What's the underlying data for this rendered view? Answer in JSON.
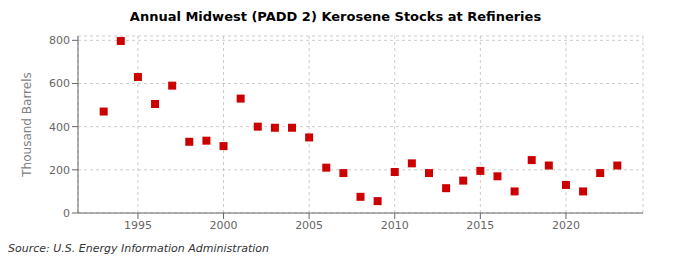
{
  "chart_data": {
    "type": "scatter",
    "title": "Annual Midwest (PADD 2) Kerosene Stocks at Refineries",
    "ylabel": "Thousand Barrels",
    "source": "Source: U.S. Energy Information Administration",
    "x": [
      1993,
      1994,
      1995,
      1996,
      1997,
      1998,
      1999,
      2000,
      2001,
      2002,
      2003,
      2004,
      2005,
      2006,
      2007,
      2008,
      2009,
      2010,
      2011,
      2012,
      2013,
      2014,
      2015,
      2016,
      2017,
      2018,
      2019,
      2020,
      2021,
      2022,
      2023
    ],
    "values": [
      470,
      797,
      630,
      505,
      590,
      330,
      335,
      310,
      530,
      400,
      395,
      395,
      350,
      210,
      185,
      75,
      55,
      190,
      230,
      185,
      115,
      150,
      195,
      170,
      100,
      245,
      220,
      130,
      100,
      185,
      220
    ],
    "color": "#cc0000",
    "marker": "square",
    "xlim": [
      1991.5,
      2024.5
    ],
    "ylim": [
      0,
      820
    ],
    "xticks": [
      1995,
      2000,
      2005,
      2010,
      2015,
      2020
    ],
    "yticks": [
      0,
      200,
      400,
      600,
      800
    ],
    "grid": true
  }
}
